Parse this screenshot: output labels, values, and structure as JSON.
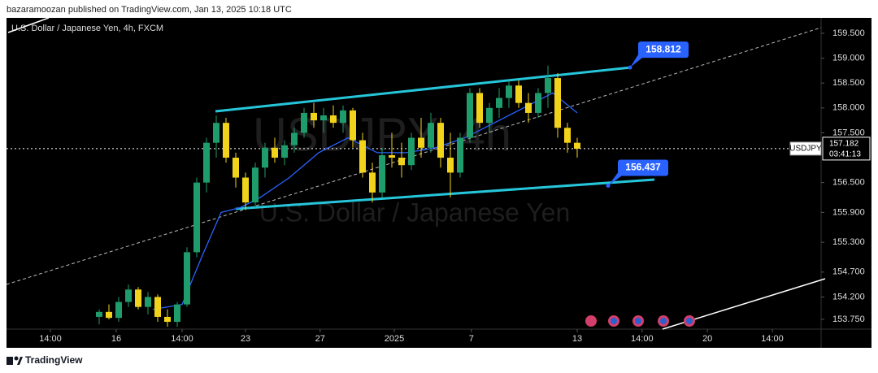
{
  "chart_data": {
    "type": "candlestick",
    "header": "bazaramoozan published on TradingView.com, Jan 13, 2025 10:18 UTC",
    "title": "U.S. Dollar / Japanese Yen, 4h, FXCM",
    "watermark": [
      "USDJPY, 4h",
      "U.S. Dollar / Japanese Yen"
    ],
    "brand": "TradingView",
    "xlim": [
      0,
      167
    ],
    "xticks": [
      {
        "value": 9,
        "label": "14:00"
      },
      {
        "value": 22.5,
        "label": "16"
      },
      {
        "value": 36,
        "label": "14:00"
      },
      {
        "value": 49,
        "label": "23"
      },
      {
        "value": 64.3,
        "label": "27"
      },
      {
        "value": 79.5,
        "label": "2025"
      },
      {
        "value": 95.3,
        "label": "7"
      },
      {
        "value": 117,
        "label": "13"
      },
      {
        "value": 130.3,
        "label": "14:00"
      },
      {
        "value": 143.7,
        "label": "20"
      },
      {
        "value": 157,
        "label": "14:00"
      }
    ],
    "ylim": [
      153.554,
      159.81
    ],
    "yticks": [
      {
        "value": 159.5,
        "label": "159.500"
      },
      {
        "value": 159,
        "label": "159.000"
      },
      {
        "value": 158.5,
        "label": "158.500"
      },
      {
        "value": 158,
        "label": "158.000"
      },
      {
        "value": 157.5,
        "label": "157.500"
      },
      {
        "value": 156.5,
        "label": "156.500"
      },
      {
        "value": 155.9,
        "label": "155.900"
      },
      {
        "value": 155.3,
        "label": "155.300"
      },
      {
        "value": 154.7,
        "label": "154.700"
      },
      {
        "value": 154.2,
        "label": "154.200"
      },
      {
        "value": 153.75,
        "label": "153.750"
      }
    ],
    "up_color": "#1f9c6b",
    "down_color": "#f2d31b",
    "series": {
      "x": [
        19,
        21,
        23,
        25,
        27,
        29,
        31,
        33,
        35,
        37,
        39,
        41,
        43,
        45,
        47,
        49,
        51,
        53,
        55,
        57,
        59,
        61,
        63,
        65,
        67,
        69,
        71,
        73,
        75,
        77,
        79,
        81,
        83,
        85,
        87,
        89,
        91,
        93,
        95,
        97,
        99,
        101,
        103,
        105,
        107,
        109,
        111,
        113,
        115,
        117
      ],
      "open": [
        153.8,
        153.9,
        153.78,
        154.1,
        154.35,
        154.0,
        154.2,
        153.8,
        153.7,
        154.05,
        155.1,
        156.5,
        157.3,
        157.7,
        157.0,
        156.6,
        156.1,
        156.8,
        157.2,
        157.0,
        157.25,
        157.5,
        157.9,
        157.75,
        157.85,
        157.7,
        157.95,
        157.35,
        156.7,
        156.3,
        157.05,
        157.0,
        156.85,
        157.4,
        157.2,
        157.7,
        157.0,
        156.7,
        157.4,
        158.3,
        157.7,
        158.0,
        158.2,
        158.45,
        158.1,
        157.9,
        158.3,
        158.6,
        157.6,
        157.3
      ],
      "high": [
        153.95,
        154.05,
        154.2,
        154.45,
        154.4,
        154.3,
        154.25,
        153.95,
        154.1,
        155.2,
        156.6,
        157.4,
        157.85,
        157.8,
        157.1,
        156.7,
        156.9,
        157.3,
        157.4,
        157.35,
        157.6,
        158.0,
        158.1,
        158.0,
        158.05,
        158.05,
        158.0,
        157.5,
        156.9,
        157.2,
        157.5,
        157.3,
        157.5,
        157.8,
        157.9,
        157.8,
        157.5,
        157.5,
        158.4,
        158.4,
        158.1,
        158.4,
        158.55,
        158.55,
        158.3,
        158.4,
        158.85,
        158.7,
        157.7,
        157.4
      ],
      "low": [
        153.65,
        153.75,
        153.7,
        154.0,
        153.95,
        153.85,
        153.7,
        153.6,
        153.6,
        154.0,
        155.0,
        156.3,
        157.0,
        156.9,
        156.4,
        155.95,
        156.0,
        156.6,
        156.9,
        156.85,
        157.1,
        157.4,
        157.6,
        157.5,
        157.6,
        157.5,
        157.2,
        156.6,
        156.1,
        156.2,
        156.8,
        156.6,
        156.75,
        157.0,
        157.1,
        156.8,
        156.2,
        156.6,
        157.3,
        157.6,
        157.5,
        157.8,
        158.0,
        158.0,
        157.7,
        157.8,
        158.0,
        157.4,
        157.1,
        157.0
      ],
      "close": [
        153.9,
        153.78,
        154.1,
        154.35,
        154.0,
        154.2,
        153.8,
        153.7,
        154.05,
        155.1,
        156.5,
        157.3,
        157.7,
        157.0,
        156.6,
        156.1,
        156.8,
        157.2,
        157.0,
        157.25,
        157.5,
        157.9,
        157.75,
        157.85,
        157.7,
        157.95,
        157.35,
        156.7,
        156.3,
        157.05,
        157.0,
        156.85,
        157.4,
        157.2,
        157.7,
        157.0,
        156.7,
        157.4,
        158.3,
        157.7,
        158.0,
        158.2,
        158.45,
        158.1,
        157.9,
        158.3,
        158.6,
        157.6,
        157.3,
        157.18
      ]
    },
    "ma": {
      "color": "#2962ff",
      "x": [
        30,
        36,
        40,
        44,
        48,
        52,
        58,
        64,
        70,
        76,
        82,
        88,
        94,
        100,
        106,
        112,
        117
      ],
      "values": [
        153.95,
        154.05,
        155.0,
        155.9,
        156.0,
        156.2,
        156.6,
        157.1,
        157.4,
        157.1,
        157.1,
        157.2,
        157.4,
        157.7,
        158.0,
        158.3,
        157.9
      ]
    },
    "channel_color": "#26c6da",
    "annotations": [
      158.812,
      156.437
    ],
    "last_price": 157.182,
    "symbol": "USDJPY",
    "countdown": "03:41:13"
  }
}
